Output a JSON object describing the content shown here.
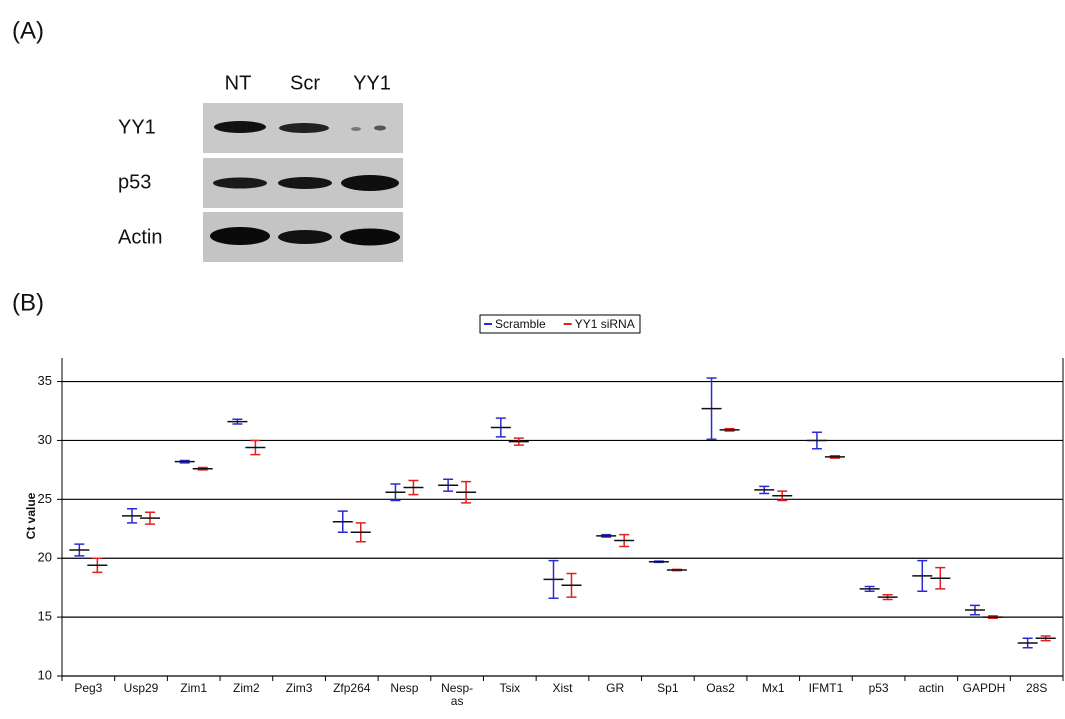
{
  "panel_a": {
    "label": "(A)",
    "columns": [
      "NT",
      "Scr",
      "YY1"
    ],
    "rows": [
      "YY1",
      "p53",
      "Actin"
    ]
  },
  "panel_b": {
    "label": "(B)"
  },
  "chart_data": {
    "type": "errorbar",
    "ylabel": "Ct value",
    "categories": [
      "Peg3",
      "Usp29",
      "Zim1",
      "Zim2",
      "Zim3",
      "Zfp264",
      "Nesp",
      "Nesp-as",
      "Tsix",
      "Xist",
      "GR",
      "Sp1",
      "Oas2",
      "Mx1",
      "IFMT1",
      "p53",
      "actin",
      "GAPDH",
      "28S"
    ],
    "series": [
      {
        "name": "Scramble",
        "color": "#2b2bd6",
        "values": [
          20.7,
          23.6,
          28.2,
          31.6,
          null,
          23.1,
          25.6,
          26.2,
          31.1,
          18.2,
          21.9,
          19.7,
          32.7,
          25.8,
          30.0,
          17.4,
          18.5,
          15.6,
          12.8
        ],
        "errors": [
          0.5,
          0.6,
          0.1,
          0.2,
          null,
          0.9,
          0.7,
          0.5,
          0.8,
          1.6,
          0.1,
          0.05,
          2.6,
          0.3,
          0.7,
          0.2,
          1.3,
          0.4,
          0.4
        ]
      },
      {
        "name": "YY1 siRNA",
        "color": "#e02020",
        "values": [
          19.4,
          23.4,
          27.6,
          29.4,
          null,
          22.2,
          26.0,
          25.6,
          29.9,
          17.7,
          21.5,
          19.0,
          30.9,
          25.3,
          28.6,
          16.7,
          18.3,
          15.0,
          13.2
        ],
        "errors": [
          0.6,
          0.5,
          0.1,
          0.6,
          null,
          0.8,
          0.6,
          0.9,
          0.3,
          1.0,
          0.5,
          0.05,
          0.1,
          0.4,
          0.1,
          0.2,
          0.9,
          0.1,
          0.2
        ]
      }
    ],
    "ylim": [
      10,
      37
    ],
    "yticks": [
      10,
      15,
      20,
      25,
      30,
      35
    ],
    "grid": true,
    "legend": "top"
  }
}
